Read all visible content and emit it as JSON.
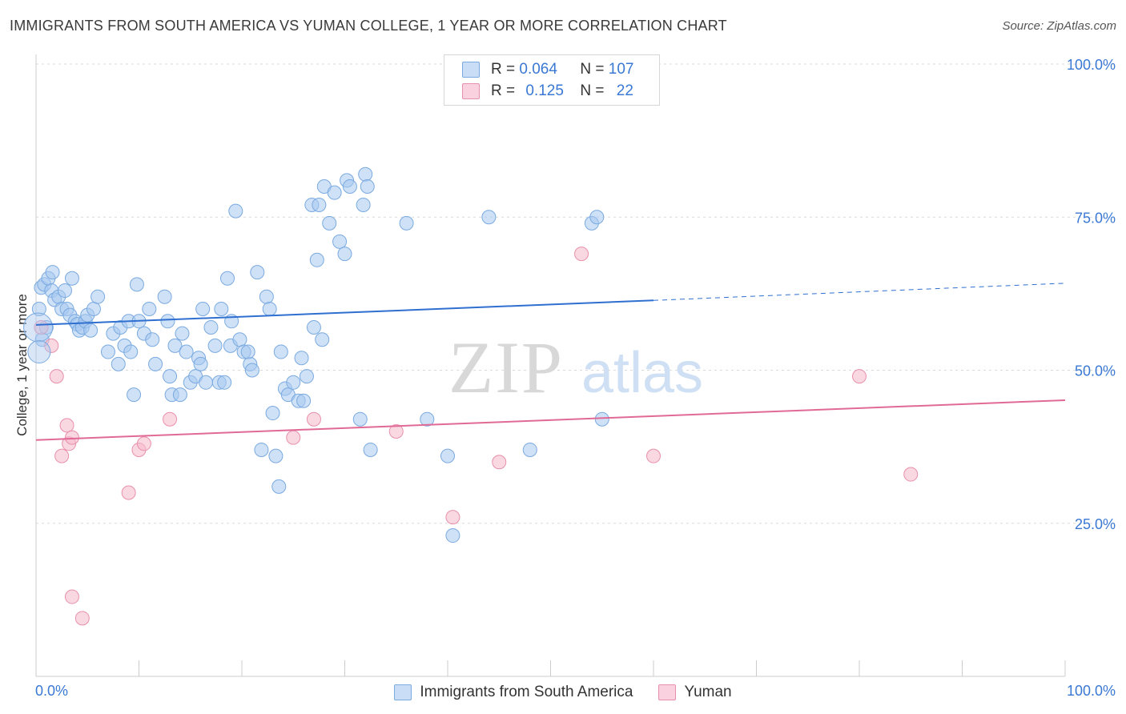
{
  "title": "IMMIGRANTS FROM SOUTH AMERICA VS YUMAN COLLEGE, 1 YEAR OR MORE CORRELATION CHART",
  "source": "Source: ZipAtlas.com",
  "watermark": {
    "zip": "ZIP",
    "atlas": "atlas"
  },
  "legend_top": {
    "rows": [
      {
        "r_label": "R = ",
        "r_value": "0.064",
        "n_label": "N = ",
        "n_value": "107",
        "color": "#a8c8f0"
      },
      {
        "r_label": "R = ",
        "r_value": "0.125",
        "n_label": "N = ",
        "n_value": "22",
        "color": "#f5b8cb"
      }
    ]
  },
  "chart_data": {
    "type": "scatter",
    "title": "IMMIGRANTS FROM SOUTH AMERICA VS YUMAN COLLEGE, 1 YEAR OR MORE CORRELATION CHART",
    "xlabel": "",
    "ylabel": "College, 1 year or more",
    "xlim": [
      0,
      100
    ],
    "ylim": [
      0,
      100
    ],
    "x_tick_labels": [
      "0.0%",
      "100.0%"
    ],
    "y_tick_labels": [
      {
        "value": 100,
        "label": "100.0%"
      },
      {
        "value": 75,
        "label": "75.0%"
      },
      {
        "value": 50,
        "label": "50.0%"
      },
      {
        "value": 25,
        "label": "25.0%"
      }
    ],
    "grid": true,
    "series": [
      {
        "name": "Immigrants from South America",
        "color": "#a8c8f0",
        "stroke": "#7aaae0",
        "line_color": "#2f6fd0",
        "trend": {
          "x0": 0,
          "y0": 57.4,
          "x1": 60,
          "y1": 61.4,
          "dash_to_x": 100,
          "dash_to_y": 64.2
        },
        "points": [
          [
            0.5,
            63.5
          ],
          [
            0.8,
            64
          ],
          [
            1.2,
            65
          ],
          [
            1.5,
            63
          ],
          [
            1.6,
            66
          ],
          [
            1.8,
            61.5
          ],
          [
            2.2,
            62
          ],
          [
            2.5,
            60
          ],
          [
            3,
            60
          ],
          [
            3.3,
            59
          ],
          [
            3.5,
            65
          ],
          [
            3.8,
            58
          ],
          [
            4,
            57.5
          ],
          [
            4.2,
            56.5
          ],
          [
            4.5,
            57
          ],
          [
            4.8,
            58
          ],
          [
            5,
            59
          ],
          [
            5.3,
            56.5
          ],
          [
            5.6,
            60
          ],
          [
            6,
            62
          ],
          [
            7,
            53
          ],
          [
            7.5,
            56
          ],
          [
            8,
            51
          ],
          [
            8.2,
            57
          ],
          [
            8.6,
            54
          ],
          [
            9,
            58
          ],
          [
            9.2,
            53
          ],
          [
            9.5,
            46
          ],
          [
            9.8,
            64
          ],
          [
            10,
            58
          ],
          [
            10.5,
            56
          ],
          [
            11,
            60
          ],
          [
            11.3,
            55
          ],
          [
            11.6,
            51
          ],
          [
            12.5,
            62
          ],
          [
            12.8,
            58
          ],
          [
            13,
            49
          ],
          [
            13.2,
            46
          ],
          [
            13.5,
            54
          ],
          [
            14,
            46
          ],
          [
            14.2,
            56
          ],
          [
            14.6,
            53
          ],
          [
            15,
            48
          ],
          [
            15.5,
            49
          ],
          [
            15.8,
            52
          ],
          [
            16,
            51
          ],
          [
            16.2,
            60
          ],
          [
            16.5,
            48
          ],
          [
            17,
            57
          ],
          [
            17.4,
            54
          ],
          [
            17.8,
            48
          ],
          [
            18,
            60
          ],
          [
            18.3,
            48
          ],
          [
            18.6,
            65
          ],
          [
            18.9,
            54
          ],
          [
            19,
            58
          ],
          [
            19.4,
            76
          ],
          [
            19.8,
            55
          ],
          [
            20.2,
            53
          ],
          [
            20.8,
            51
          ],
          [
            20.6,
            53
          ],
          [
            21,
            50
          ],
          [
            21.5,
            66
          ],
          [
            21.9,
            37
          ],
          [
            22.4,
            62
          ],
          [
            22.7,
            60
          ],
          [
            23,
            43
          ],
          [
            23.3,
            36
          ],
          [
            23.6,
            31
          ],
          [
            23.8,
            53
          ],
          [
            24.2,
            47
          ],
          [
            24.5,
            46
          ],
          [
            25,
            48
          ],
          [
            25.5,
            45
          ],
          [
            25.8,
            52
          ],
          [
            26,
            45
          ],
          [
            26.3,
            49
          ],
          [
            26.8,
            77
          ],
          [
            27,
            57
          ],
          [
            27.3,
            68
          ],
          [
            27.8,
            55
          ],
          [
            27.5,
            77
          ],
          [
            28,
            80
          ],
          [
            28.5,
            74
          ],
          [
            29,
            79
          ],
          [
            29.5,
            71
          ],
          [
            30,
            69
          ],
          [
            30.2,
            81
          ],
          [
            30.5,
            80
          ],
          [
            31.5,
            42
          ],
          [
            32,
            82
          ],
          [
            32.2,
            80
          ],
          [
            31.8,
            77
          ],
          [
            32.5,
            37
          ],
          [
            36,
            74
          ],
          [
            38,
            42
          ],
          [
            40,
            36
          ],
          [
            40.5,
            23
          ],
          [
            44,
            75
          ],
          [
            48,
            37
          ],
          [
            54,
            74
          ],
          [
            54.5,
            75
          ],
          [
            55,
            42
          ],
          [
            0.3,
            60
          ],
          [
            0.6,
            55
          ],
          [
            1,
            57
          ],
          [
            2.8,
            63
          ]
        ]
      },
      {
        "name": "Yuman",
        "color": "#f5b8cb",
        "stroke": "#e890ab",
        "line_color": "#e06a95",
        "trend": {
          "x0": 0,
          "y0": 38.6,
          "x1": 100,
          "y1": 45.1
        },
        "points": [
          [
            0.5,
            57
          ],
          [
            1.5,
            54
          ],
          [
            2,
            49
          ],
          [
            2.5,
            36
          ],
          [
            3,
            41
          ],
          [
            3.2,
            38
          ],
          [
            3.5,
            39
          ],
          [
            3.5,
            13
          ],
          [
            4.5,
            9.5
          ],
          [
            9,
            30
          ],
          [
            10,
            37
          ],
          [
            10.5,
            38
          ],
          [
            13,
            42
          ],
          [
            25,
            39
          ],
          [
            27,
            42
          ],
          [
            35,
            40
          ],
          [
            40.5,
            26
          ],
          [
            45,
            35
          ],
          [
            53,
            69
          ],
          [
            60,
            36
          ],
          [
            80,
            49
          ],
          [
            85,
            33
          ]
        ]
      }
    ]
  }
}
